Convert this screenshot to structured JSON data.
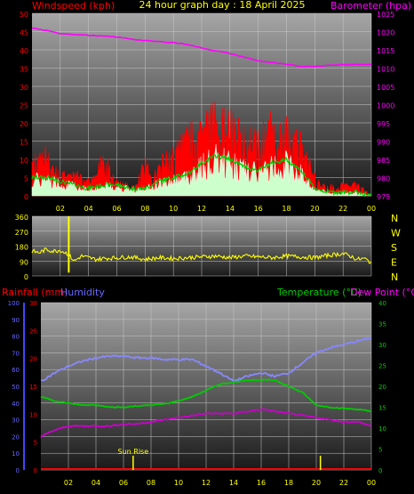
{
  "header": {
    "left_label": "Windspeed (kph)",
    "title": "24 hour graph day : 18 April 2025",
    "right_label": "Barometer (hpa)"
  },
  "bottom_header": {
    "rain_label": "Rainfall (mm)",
    "hum_label": "Humidity",
    "temp_label": "Temperature (°C)",
    "dew_label": "Dew Point (°C)"
  },
  "colors": {
    "wind": "#ff0000",
    "avg_wind": "#00cc00",
    "gust_fill": "#ccffcc",
    "barometer": "#ff00ff",
    "direction": "#ffff00",
    "humidity": "#8888ff",
    "temperature": "#00cc00",
    "dewpoint": "#cc00cc",
    "rain_axis": "#ff0000",
    "hum_axis": "#4444ff",
    "temp_axis": "#00cc00"
  },
  "chart_data": [
    {
      "type": "line",
      "panel": "wind-barometer",
      "x_ticks": [
        "02",
        "04",
        "06",
        "08",
        "10",
        "12",
        "14",
        "16",
        "18",
        "20",
        "22",
        "00"
      ],
      "y_left_ticks": [
        0,
        5,
        10,
        15,
        20,
        25,
        30,
        35,
        40,
        45,
        50
      ],
      "y_left_range": [
        0,
        50
      ],
      "y_right_ticks": [
        975,
        980,
        985,
        990,
        995,
        1000,
        1005,
        1010,
        1015,
        1020,
        1025
      ],
      "y_right_range": [
        975,
        1025
      ],
      "grid": true,
      "series": [
        {
          "name": "Windspeed (kph)",
          "key": "wind_max",
          "x": [
            0,
            0.5,
            1,
            1.5,
            2,
            2.5,
            3,
            3.5,
            4,
            4.5,
            5,
            5.5,
            6,
            6.5,
            7,
            7.5,
            8,
            8.5,
            9,
            9.5,
            10,
            10.5,
            11,
            11.5,
            12,
            12.5,
            13,
            13.5,
            14,
            14.5,
            15,
            15.5,
            16,
            16.5,
            17,
            17.5,
            18,
            18.5,
            19,
            19.5,
            20,
            20.5,
            21,
            21.5,
            22,
            22.5,
            23,
            23.5,
            24
          ],
          "values": [
            12,
            15,
            14,
            10,
            9,
            7,
            8,
            6,
            5,
            6,
            14,
            10,
            5,
            4,
            3,
            5,
            12,
            6,
            10,
            14,
            16,
            18,
            20,
            22,
            24,
            26,
            28,
            24,
            26,
            22,
            20,
            19,
            20,
            22,
            24,
            20,
            22,
            21,
            18,
            14,
            6,
            3,
            5,
            2,
            4,
            3,
            5,
            2,
            0
          ]
        },
        {
          "name": "Average",
          "key": "wind_avg",
          "x": [
            0,
            1,
            2,
            3,
            4,
            5,
            6,
            7,
            8,
            9,
            10,
            11,
            12,
            13,
            14,
            15,
            16,
            17,
            18,
            19,
            20,
            21,
            22,
            23,
            24
          ],
          "values": [
            5,
            5,
            4,
            3,
            2,
            3,
            3,
            2,
            2,
            4,
            5,
            6,
            9,
            11,
            10,
            8,
            7,
            9,
            10,
            7,
            2,
            1,
            1,
            1,
            0
          ]
        },
        {
          "name": "Barometer (hpa)",
          "key": "baro",
          "x": [
            0,
            2,
            4,
            6,
            8,
            10,
            11,
            12,
            14,
            16,
            18,
            19,
            20,
            22,
            24
          ],
          "values": [
            1021,
            1019.5,
            1019,
            1018.5,
            1017.5,
            1017,
            1016.5,
            1015.5,
            1014,
            1012,
            1011,
            1010.5,
            1010.5,
            1011,
            1011
          ]
        }
      ]
    },
    {
      "type": "line",
      "panel": "wind-direction",
      "y_ticks": [
        0,
        90,
        180,
        270,
        360
      ],
      "y_range": [
        0,
        360
      ],
      "compass": [
        "N",
        "W",
        "S",
        "E",
        "N"
      ],
      "series": [
        {
          "name": "Wind direction",
          "x": [
            0,
            0.5,
            1,
            1.5,
            2,
            2.5,
            3,
            3.5,
            4,
            4.5,
            5,
            6,
            7,
            8,
            9,
            10,
            11,
            12,
            13,
            14,
            15,
            16,
            17,
            18,
            19,
            20,
            21,
            22,
            22.5,
            23,
            23.5,
            24
          ],
          "values": [
            150,
            140,
            160,
            150,
            155,
            135,
            90,
            120,
            110,
            100,
            105,
            110,
            115,
            100,
            110,
            105,
            110,
            115,
            120,
            110,
            120,
            115,
            110,
            120,
            115,
            110,
            125,
            135,
            120,
            100,
            105,
            80
          ]
        }
      ]
    },
    {
      "type": "line",
      "panel": "temperature-humidity",
      "y_rain_ticks": [
        0,
        5,
        10,
        15,
        20,
        25,
        30
      ],
      "y_rain_range": [
        0,
        30
      ],
      "y_hum_ticks": [
        0,
        10,
        20,
        30,
        40,
        50,
        60,
        70,
        80,
        90,
        100
      ],
      "y_hum_range": [
        0,
        100
      ],
      "y_temp_ticks": [
        0,
        5,
        10,
        15,
        20,
        25,
        30,
        35,
        40
      ],
      "y_temp_range": [
        0,
        40
      ],
      "annotation": "Sun Rise",
      "series": [
        {
          "name": "Humidity",
          "key": "humidity",
          "x": [
            0,
            1,
            2,
            3,
            4,
            5,
            6,
            7,
            8,
            9,
            10,
            11,
            12,
            13,
            14,
            15,
            16,
            17,
            18,
            19,
            20,
            21,
            22,
            23,
            24
          ],
          "values": [
            53,
            58,
            62,
            65,
            67,
            68,
            68,
            67,
            67,
            66,
            66,
            66,
            62,
            58,
            53,
            56,
            58,
            56,
            58,
            64,
            70,
            73,
            75,
            77,
            79
          ]
        },
        {
          "name": "Temperature (°C)",
          "key": "temperature",
          "x": [
            0,
            1,
            2,
            3,
            4,
            5,
            6,
            7,
            8,
            9,
            10,
            11,
            12,
            13,
            14,
            15,
            16,
            17,
            18,
            19,
            20,
            21,
            22,
            23,
            24
          ],
          "values": [
            17.5,
            16.5,
            16,
            15.5,
            15.5,
            15,
            15,
            15.3,
            15.5,
            15.8,
            16.5,
            17.5,
            19,
            20.5,
            21,
            21.5,
            21.5,
            21.5,
            20,
            18.5,
            15.5,
            15,
            14.7,
            14.5,
            14
          ]
        },
        {
          "name": "Dew Point (°C)",
          "key": "dewpoint",
          "x": [
            0,
            1,
            2,
            3,
            4,
            5,
            6,
            7,
            8,
            9,
            10,
            11,
            12,
            13,
            14,
            15,
            16,
            17,
            18,
            19,
            20,
            21,
            22,
            23,
            24
          ],
          "values": [
            8,
            9.5,
            10.5,
            10.5,
            10.5,
            10.5,
            11,
            11,
            11.5,
            12,
            12.5,
            13,
            13.5,
            13.5,
            13.5,
            14,
            14.5,
            14,
            13.5,
            13,
            12.5,
            12,
            11.5,
            11.5,
            10.5
          ]
        },
        {
          "name": "Rainfall (mm)",
          "key": "rain",
          "x": [
            0,
            24
          ],
          "values": [
            0,
            0
          ]
        }
      ]
    }
  ]
}
